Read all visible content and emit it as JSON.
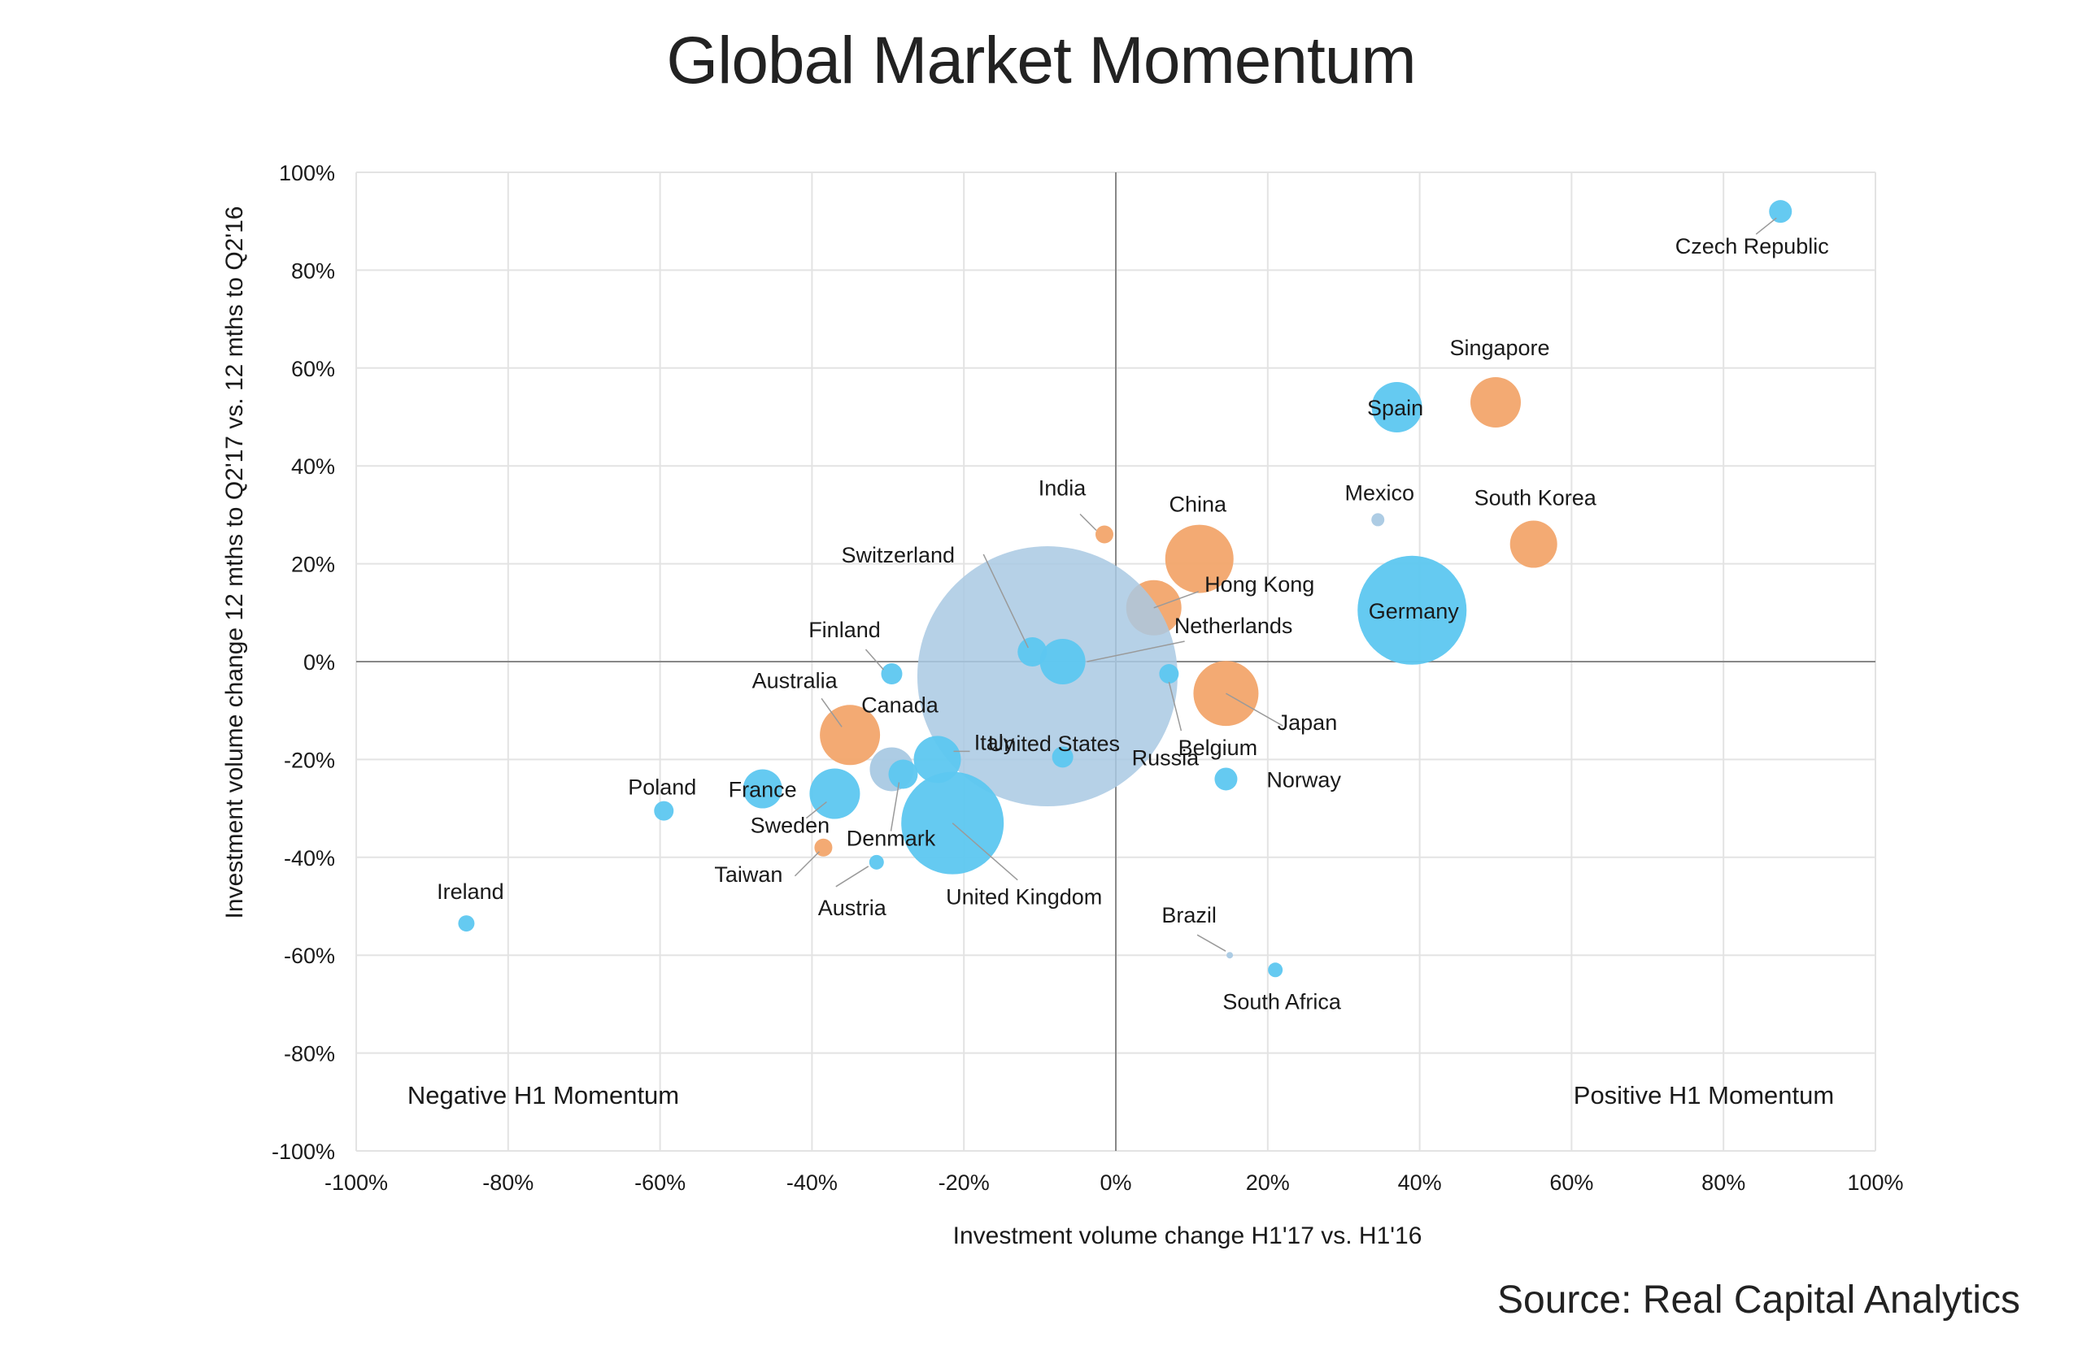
{
  "title": "Global Market Momentum",
  "source": "Source: Real Capital Analytics",
  "colors": {
    "asia_pacific": "#F2A56B",
    "europe_mea": "#5DC7F0",
    "americas": "#A9C9E3",
    "grid": "#e3e3e3",
    "axis": "#888888",
    "text": "#1a1a1a"
  },
  "chart_data": {
    "type": "scatter",
    "variant": "bubble",
    "xlabel": "Investment volume change H1'17 vs. H1'16",
    "ylabel": "Investment volume change 12 mths to Q2'17 vs. 12 mths to Q2'16",
    "xlim": [
      -100,
      100
    ],
    "ylim": [
      -100,
      100
    ],
    "x_ticks": [
      "-100%",
      "-80%",
      "-60%",
      "-40%",
      "-20%",
      "0%",
      "20%",
      "40%",
      "60%",
      "80%",
      "100%"
    ],
    "y_ticks": [
      "100%",
      "80%",
      "60%",
      "40%",
      "20%",
      "0%",
      "-20%",
      "-40%",
      "-60%",
      "-80%",
      "-100%"
    ],
    "grid": true,
    "quadrant_labels": [
      "Negative H1 Momentum",
      "Positive H1 Momentum"
    ],
    "points": [
      {
        "name": "Czech Republic",
        "x": 87.5,
        "y": 92,
        "r": 14,
        "color": "europe_mea"
      },
      {
        "name": "Singapore",
        "x": 50,
        "y": 53,
        "r": 31,
        "color": "asia_pacific"
      },
      {
        "name": "Spain",
        "x": 37,
        "y": 52,
        "r": 31,
        "color": "europe_mea"
      },
      {
        "name": "Mexico",
        "x": 34.5,
        "y": 29,
        "r": 8,
        "color": "americas"
      },
      {
        "name": "South Korea",
        "x": 55,
        "y": 24,
        "r": 29,
        "color": "asia_pacific"
      },
      {
        "name": "India",
        "x": -1.5,
        "y": 26,
        "r": 11,
        "color": "asia_pacific"
      },
      {
        "name": "China",
        "x": 11,
        "y": 21,
        "r": 42,
        "color": "asia_pacific"
      },
      {
        "name": "Hong Kong",
        "x": 5,
        "y": 11,
        "r": 34,
        "color": "asia_pacific"
      },
      {
        "name": "Germany",
        "x": 39,
        "y": 10.5,
        "r": 67,
        "color": "europe_mea"
      },
      {
        "name": "United States",
        "x": -9,
        "y": -3,
        "r": 160,
        "color": "americas"
      },
      {
        "name": "Switzerland",
        "x": -11,
        "y": 2,
        "r": 18,
        "color": "europe_mea"
      },
      {
        "name": "Netherlands",
        "x": -7,
        "y": 0,
        "r": 28,
        "color": "europe_mea"
      },
      {
        "name": "Finland",
        "x": -29.5,
        "y": -2.5,
        "r": 13,
        "color": "europe_mea"
      },
      {
        "name": "Belgium",
        "x": 7,
        "y": -2.5,
        "r": 12,
        "color": "europe_mea"
      },
      {
        "name": "Japan",
        "x": 14.5,
        "y": -6.5,
        "r": 40,
        "color": "asia_pacific"
      },
      {
        "name": "Australia",
        "x": -35,
        "y": -15,
        "r": 37,
        "color": "asia_pacific"
      },
      {
        "name": "Canada",
        "x": -29.5,
        "y": -22,
        "r": 27,
        "color": "americas"
      },
      {
        "name": "Italy",
        "x": -23.5,
        "y": -20,
        "r": 29,
        "color": "europe_mea"
      },
      {
        "name": "Russia",
        "x": -7,
        "y": -19.5,
        "r": 13,
        "color": "europe_mea"
      },
      {
        "name": "Denmark",
        "x": -28,
        "y": -23,
        "r": 18,
        "color": "europe_mea"
      },
      {
        "name": "France",
        "x": -46.5,
        "y": -26,
        "r": 24,
        "color": "europe_mea"
      },
      {
        "name": "Sweden",
        "x": -37,
        "y": -27,
        "r": 31,
        "color": "europe_mea"
      },
      {
        "name": "Norway",
        "x": 14.5,
        "y": -24,
        "r": 14,
        "color": "europe_mea"
      },
      {
        "name": "Poland",
        "x": -59.5,
        "y": -30.5,
        "r": 12,
        "color": "europe_mea"
      },
      {
        "name": "United Kingdom",
        "x": -21.5,
        "y": -33,
        "r": 63,
        "color": "europe_mea"
      },
      {
        "name": "Taiwan",
        "x": -38.5,
        "y": -38,
        "r": 11,
        "color": "asia_pacific"
      },
      {
        "name": "Austria",
        "x": -31.5,
        "y": -41,
        "r": 9,
        "color": "europe_mea"
      },
      {
        "name": "Ireland",
        "x": -85.5,
        "y": -53.5,
        "r": 10,
        "color": "europe_mea"
      },
      {
        "name": "Brazil",
        "x": 15,
        "y": -60,
        "r": 4,
        "color": "americas"
      },
      {
        "name": "South Africa",
        "x": 21,
        "y": -63,
        "r": 9,
        "color": "europe_mea"
      }
    ]
  }
}
